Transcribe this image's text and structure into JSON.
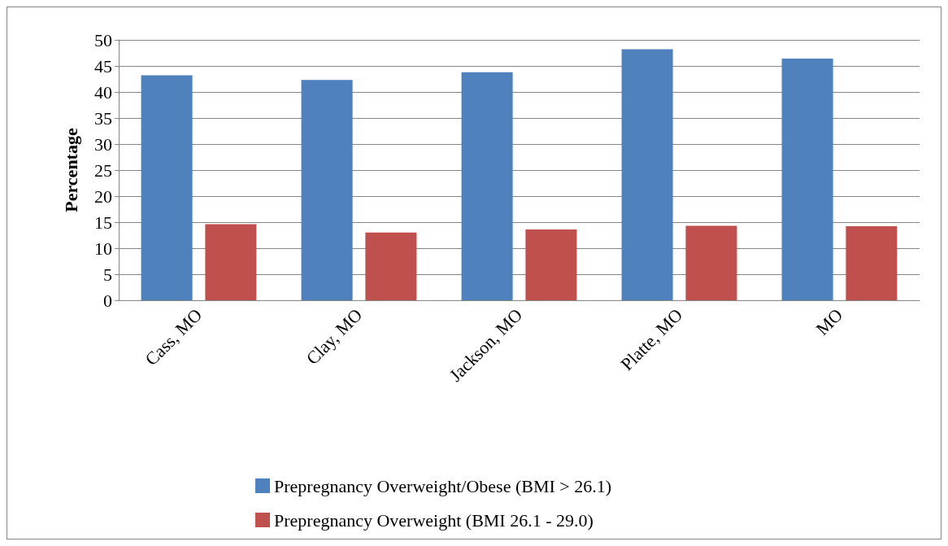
{
  "chart_data": {
    "type": "bar",
    "ylabel": "Percentage",
    "categories": [
      "Cass, MO",
      "Clay, MO",
      "Jackson, MO",
      "Platte, MO",
      "MO"
    ],
    "series": [
      {
        "name": "Prepregnancy Overweight/Obese (BMI > 26.1)",
        "color": "#4f81bd",
        "values": [
          43.2,
          42.3,
          43.8,
          48.2,
          46.4
        ]
      },
      {
        "name": "Prepregnancy Overweight (BMI 26.1 - 29.0)",
        "color": "#c0504d",
        "values": [
          14.6,
          13.0,
          13.6,
          14.3,
          14.2
        ]
      }
    ],
    "ylim": [
      0,
      50
    ],
    "yticks": [
      0,
      5,
      10,
      15,
      20,
      25,
      30,
      35,
      40,
      45,
      50
    ],
    "grid": "y",
    "legend": "bottom"
  }
}
